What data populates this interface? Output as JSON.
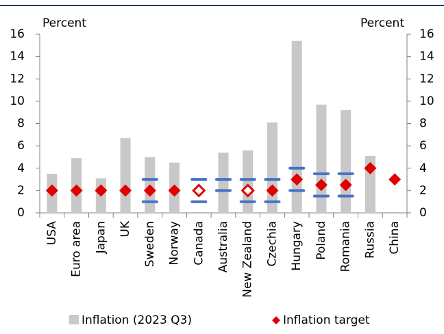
{
  "chart_data": {
    "type": "bar",
    "y_axis_label": "Percent",
    "y2_axis_label": "Percent",
    "categories": [
      "USA",
      "Euro area",
      "Japan",
      "UK",
      "Sweden",
      "Norway",
      "Canada",
      "Australia",
      "New Zealand",
      "Czechia",
      "Hungary",
      "Poland",
      "Romania",
      "Russia",
      "China"
    ],
    "series": [
      {
        "name": "Inflation (2023 Q3)",
        "color": "#c8c8c8",
        "values": [
          3.5,
          4.9,
          3.1,
          6.7,
          5.0,
          4.5,
          null,
          5.4,
          5.6,
          8.1,
          15.4,
          9.7,
          9.2,
          5.1,
          null
        ]
      },
      {
        "name": "Inflation target",
        "color": "#e00000",
        "values": [
          2,
          2,
          2,
          2,
          2,
          2,
          2,
          null,
          2,
          2,
          3,
          2.5,
          2.5,
          4,
          3
        ],
        "marker_style": [
          "filled",
          "filled",
          "filled",
          "filled",
          "filled",
          "filled",
          "hollow",
          null,
          "hollow",
          "filled",
          "filled",
          "filled",
          "filled",
          "filled",
          "filled"
        ]
      }
    ],
    "target_range": {
      "color": "#4472c4",
      "low": [
        null,
        null,
        null,
        null,
        1,
        null,
        1,
        2,
        1,
        1,
        2,
        1.5,
        1.5,
        null,
        null
      ],
      "high": [
        null,
        null,
        null,
        null,
        3,
        null,
        3,
        3,
        3,
        3,
        4,
        3.5,
        3.5,
        null,
        null
      ]
    },
    "ylim": [
      0,
      16
    ],
    "yticks": [
      0,
      2,
      4,
      6,
      8,
      10,
      12,
      14,
      16
    ],
    "y2lim": [
      0,
      16
    ],
    "y2ticks": [
      0,
      2,
      4,
      6,
      8,
      10,
      12,
      14,
      16
    ],
    "grid": false,
    "legend": "bottom"
  }
}
